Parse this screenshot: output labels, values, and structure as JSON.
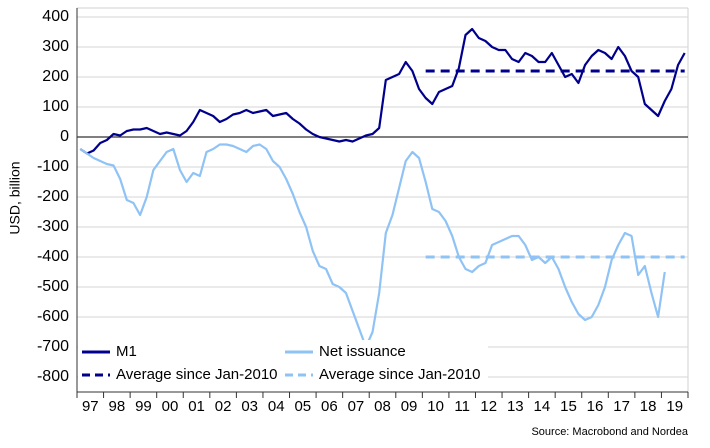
{
  "chart_data": {
    "type": "line",
    "y_axis_label": "USD, billion",
    "source": "Source: Macrobond and Nordea",
    "categories": [
      "97",
      null,
      null,
      null,
      "98",
      null,
      null,
      null,
      "99",
      null,
      null,
      null,
      "00",
      null,
      null,
      null,
      "01",
      null,
      null,
      null,
      "02",
      null,
      null,
      null,
      "03",
      null,
      null,
      null,
      "04",
      null,
      null,
      null,
      "05",
      null,
      null,
      null,
      "06",
      null,
      null,
      null,
      "07",
      null,
      null,
      null,
      "08",
      null,
      null,
      null,
      "09",
      null,
      null,
      null,
      "10",
      null,
      null,
      null,
      "11",
      null,
      null,
      null,
      "12",
      null,
      null,
      null,
      "13",
      null,
      null,
      null,
      "14",
      null,
      null,
      null,
      "15",
      null,
      null,
      null,
      "16",
      null,
      null,
      null,
      "17",
      null,
      null,
      null,
      "18",
      null,
      null,
      null,
      "19",
      null,
      null,
      null
    ],
    "series": [
      {
        "name": "M1",
        "color": "#00008c",
        "values": [
          -40,
          -55,
          -45,
          -20,
          -10,
          10,
          5,
          20,
          25,
          25,
          30,
          20,
          10,
          15,
          10,
          5,
          20,
          50,
          90,
          80,
          70,
          50,
          60,
          75,
          80,
          90,
          80,
          85,
          90,
          70,
          75,
          80,
          60,
          45,
          25,
          10,
          0,
          -5,
          -10,
          -15,
          -10,
          -15,
          -5,
          5,
          10,
          30,
          190,
          200,
          210,
          250,
          220,
          160,
          130,
          110,
          150,
          160,
          170,
          230,
          340,
          360,
          330,
          320,
          300,
          290,
          290,
          260,
          250,
          280,
          270,
          250,
          250,
          280,
          240,
          200,
          210,
          180,
          240,
          270,
          290,
          280,
          260,
          300,
          270,
          220,
          200,
          110,
          90,
          70,
          120,
          160,
          240,
          280
        ]
      },
      {
        "name": "Net issuance",
        "color": "#8fc3f5",
        "values": [
          -40,
          -55,
          -70,
          -80,
          -90,
          -95,
          -140,
          -210,
          -220,
          -260,
          -200,
          -110,
          -80,
          -50,
          -40,
          -110,
          -150,
          -120,
          -130,
          -50,
          -40,
          -25,
          -25,
          -30,
          -40,
          -50,
          -30,
          -25,
          -40,
          -80,
          -100,
          -140,
          -190,
          -250,
          -300,
          -380,
          -430,
          -440,
          -490,
          -500,
          -520,
          -580,
          -640,
          -700,
          -650,
          -520,
          -320,
          -260,
          -170,
          -80,
          -50,
          -70,
          -150,
          -240,
          -250,
          -280,
          -330,
          -400,
          -440,
          -450,
          -430,
          -420,
          -360,
          -350,
          -340,
          -330,
          -330,
          -360,
          -410,
          -400,
          -420,
          -400,
          -440,
          -500,
          -550,
          -590,
          -610,
          -600,
          -560,
          -500,
          -410,
          -360,
          -320,
          -330,
          -460,
          -430,
          -520,
          -600,
          -450,
          null,
          null,
          null
        ]
      },
      {
        "name": "Average since Jan-2010",
        "color": "#00008c",
        "dash": true,
        "values": [
          null,
          null,
          null,
          null,
          null,
          null,
          null,
          null,
          null,
          null,
          null,
          null,
          null,
          null,
          null,
          null,
          null,
          null,
          null,
          null,
          null,
          null,
          null,
          null,
          null,
          null,
          null,
          null,
          null,
          null,
          null,
          null,
          null,
          null,
          null,
          null,
          null,
          null,
          null,
          null,
          null,
          null,
          null,
          null,
          null,
          null,
          null,
          null,
          null,
          null,
          null,
          null,
          220,
          220,
          220,
          220,
          220,
          220,
          220,
          220,
          220,
          220,
          220,
          220,
          220,
          220,
          220,
          220,
          220,
          220,
          220,
          220,
          220,
          220,
          220,
          220,
          220,
          220,
          220,
          220,
          220,
          220,
          220,
          220,
          220,
          220,
          220,
          220,
          220,
          220,
          220,
          220
        ]
      },
      {
        "name": "Average since Jan-2010",
        "color": "#8fc3f5",
        "dash": true,
        "values": [
          null,
          null,
          null,
          null,
          null,
          null,
          null,
          null,
          null,
          null,
          null,
          null,
          null,
          null,
          null,
          null,
          null,
          null,
          null,
          null,
          null,
          null,
          null,
          null,
          null,
          null,
          null,
          null,
          null,
          null,
          null,
          null,
          null,
          null,
          null,
          null,
          null,
          null,
          null,
          null,
          null,
          null,
          null,
          null,
          null,
          null,
          null,
          null,
          null,
          null,
          null,
          null,
          -400,
          -400,
          -400,
          -400,
          -400,
          -400,
          -400,
          -400,
          -400,
          -400,
          -400,
          -400,
          -400,
          -400,
          -400,
          -400,
          -400,
          -400,
          -400,
          -400,
          -400,
          -400,
          -400,
          -400,
          -400,
          -400,
          -400,
          -400,
          -400,
          -400,
          -400,
          -400,
          -400,
          -400,
          -400,
          -400,
          -400,
          -400,
          -400,
          -400
        ]
      }
    ],
    "ylim": [
      -850,
      430
    ],
    "yticks": [
      -800,
      -700,
      -600,
      -500,
      -400,
      -300,
      -200,
      -100,
      0,
      100,
      200,
      300,
      400
    ],
    "grid": true,
    "legend": "lower left"
  }
}
